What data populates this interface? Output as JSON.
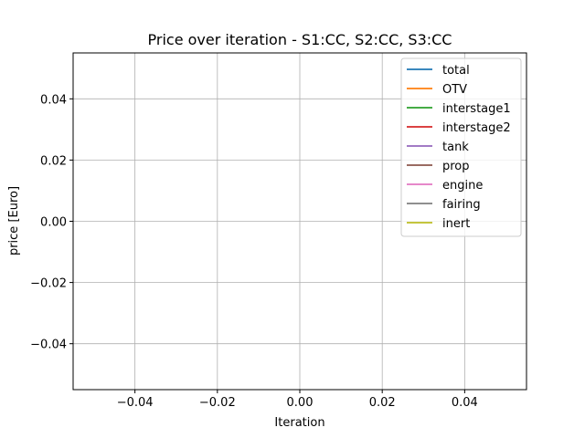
{
  "chart_data": {
    "type": "line",
    "title": "Price over iteration - S1:CC, S2:CC, S3:CC",
    "xlabel": "Iteration",
    "ylabel": "price [Euro]",
    "xlim": [
      -0.055,
      0.055
    ],
    "ylim": [
      -0.055,
      0.055
    ],
    "x_ticks": [
      -0.04,
      -0.02,
      0.0,
      0.02,
      0.04
    ],
    "x_tick_labels": [
      "−0.04",
      "−0.02",
      "0.00",
      "0.02",
      "0.04"
    ],
    "y_ticks": [
      0.04,
      0.02,
      0.0,
      -0.02,
      -0.04
    ],
    "y_tick_labels": [
      "0.04",
      "0.02",
      "0.00",
      "−0.02",
      "−0.04"
    ],
    "grid": true,
    "legend_position": "top-right",
    "x": [],
    "series": [
      {
        "name": "total",
        "color": "#1f77b4",
        "values": []
      },
      {
        "name": "OTV",
        "color": "#ff7f0e",
        "values": []
      },
      {
        "name": "interstage1",
        "color": "#2ca02c",
        "values": []
      },
      {
        "name": "interstage2",
        "color": "#d62728",
        "values": []
      },
      {
        "name": "tank",
        "color": "#9467bd",
        "values": []
      },
      {
        "name": "prop",
        "color": "#8c564b",
        "values": []
      },
      {
        "name": "engine",
        "color": "#e377c2",
        "values": []
      },
      {
        "name": "fairing",
        "color": "#7f7f7f",
        "values": []
      },
      {
        "name": "inert",
        "color": "#bcbd22",
        "values": []
      }
    ]
  }
}
